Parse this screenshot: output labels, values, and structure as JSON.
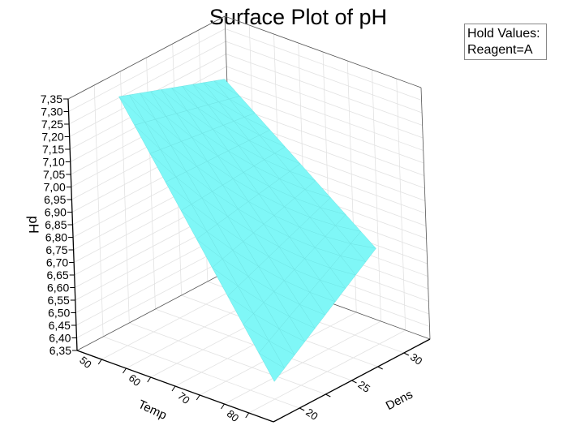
{
  "chart_data": {
    "type": "surface",
    "title": "Surface Plot of pH",
    "xlabel": "Temp",
    "ylabel": "Dens",
    "zlabel": "pH",
    "x_ticks": [
      "50",
      "60",
      "70",
      "80"
    ],
    "x_tick_values": [
      50,
      60,
      70,
      80
    ],
    "y_ticks": [
      "20",
      "25",
      "30"
    ],
    "y_tick_values": [
      20,
      25,
      30
    ],
    "z_ticks": [
      "6,35",
      "6,40",
      "6,45",
      "6,50",
      "6,55",
      "6,60",
      "6,65",
      "6,70",
      "6,75",
      "6,80",
      "6,85",
      "6,90",
      "6,95",
      "7,00",
      "7,05",
      "7,10",
      "7,15",
      "7,20",
      "7,25",
      "7,30",
      "7,35"
    ],
    "xlim": [
      45,
      85
    ],
    "ylim": [
      17.5,
      32.5
    ],
    "zlim": [
      6.35,
      7.35
    ],
    "surface": {
      "x": [
        50,
        80
      ],
      "y": [
        20,
        30
      ],
      "z": [
        [
          7.34,
          7.19
        ],
        [
          6.42,
          6.73
        ]
      ]
    },
    "surface_color": "#7ff7f7",
    "grid": true,
    "legend": {
      "placement": "top-right",
      "lines": [
        "Hold Values:",
        "Reagent=A"
      ]
    }
  }
}
